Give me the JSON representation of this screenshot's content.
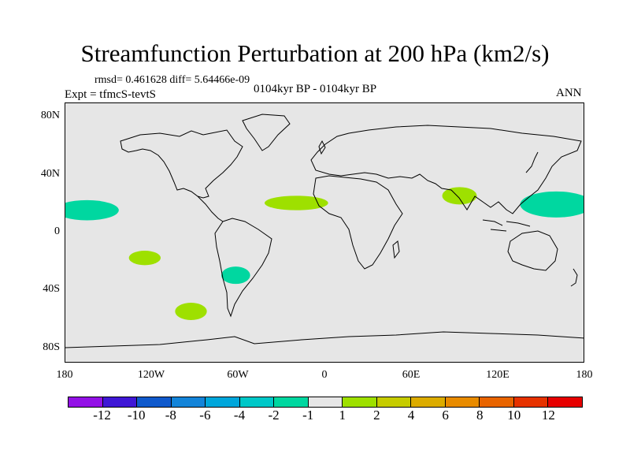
{
  "title": "Streamfunction Perturbation at 200 hPa (km2/s)",
  "stats": "rmsd= 0.461628 diff= 5.64466e-09",
  "experiment": "Expt = tfmcS-tevtS",
  "period": "0104kyr BP - 0104kyr BP",
  "season": "ANN",
  "colors": {
    "background": "#e6e6e6",
    "coast": "#000000"
  },
  "map": {
    "lon_range": [
      -180,
      180
    ],
    "lat_range": [
      -90,
      90
    ],
    "lat_ticks": [
      {
        "label": "80N",
        "lat": 80
      },
      {
        "label": "40N",
        "lat": 40
      },
      {
        "label": "0",
        "lat": 0
      },
      {
        "label": "40S",
        "lat": -40
      },
      {
        "label": "80S",
        "lat": -80
      }
    ],
    "lon_ticks": [
      {
        "label": "180",
        "lon": -180
      },
      {
        "label": "120W",
        "lon": -120
      },
      {
        "label": "60W",
        "lon": -60
      },
      {
        "label": "0",
        "lon": 0
      },
      {
        "label": "60E",
        "lon": 60
      },
      {
        "label": "120E",
        "lon": 120
      },
      {
        "label": "180",
        "lon": 180
      }
    ],
    "anomalies": [
      {
        "name": "pacific-west-hemisphere-neg",
        "lon": -165,
        "lat": 16,
        "rlon": 22,
        "rlat": 7,
        "color": "#00d7a0"
      },
      {
        "name": "pacific-east-hemisphere-neg",
        "lon": 160,
        "lat": 20,
        "rlon": 25,
        "rlat": 9,
        "color": "#00d7a0"
      },
      {
        "name": "south-pacific-pos",
        "lon": -125,
        "lat": -17,
        "rlon": 11,
        "rlat": 5,
        "color": "#9ee000"
      },
      {
        "name": "south-america-neg",
        "lon": -62,
        "lat": -29,
        "rlon": 10,
        "rlat": 6,
        "color": "#00d7a0"
      },
      {
        "name": "southern-ocean-pos",
        "lon": -93,
        "lat": -54,
        "rlon": 11,
        "rlat": 6,
        "color": "#9ee000"
      },
      {
        "name": "sahara-pos",
        "lon": -20,
        "lat": 21,
        "rlon": 22,
        "rlat": 5,
        "color": "#9ee000"
      },
      {
        "name": "south-asia-pos",
        "lon": 93,
        "lat": 26,
        "rlon": 12,
        "rlat": 6,
        "color": "#9ee000"
      }
    ]
  },
  "legend": {
    "colors": [
      "#9311e6",
      "#3f17d6",
      "#0f59cc",
      "#1384d9",
      "#00a6db",
      "#00c8c8",
      "#00d7a0",
      "#e6e6e6",
      "#9ee000",
      "#c6cc00",
      "#dcac00",
      "#e88b00",
      "#e86400",
      "#e63200",
      "#e60000"
    ],
    "labels": [
      "-12",
      "-10",
      "-8",
      "-6",
      "-4",
      "-2",
      "-1",
      "1",
      "2",
      "4",
      "6",
      "8",
      "10",
      "12"
    ]
  }
}
